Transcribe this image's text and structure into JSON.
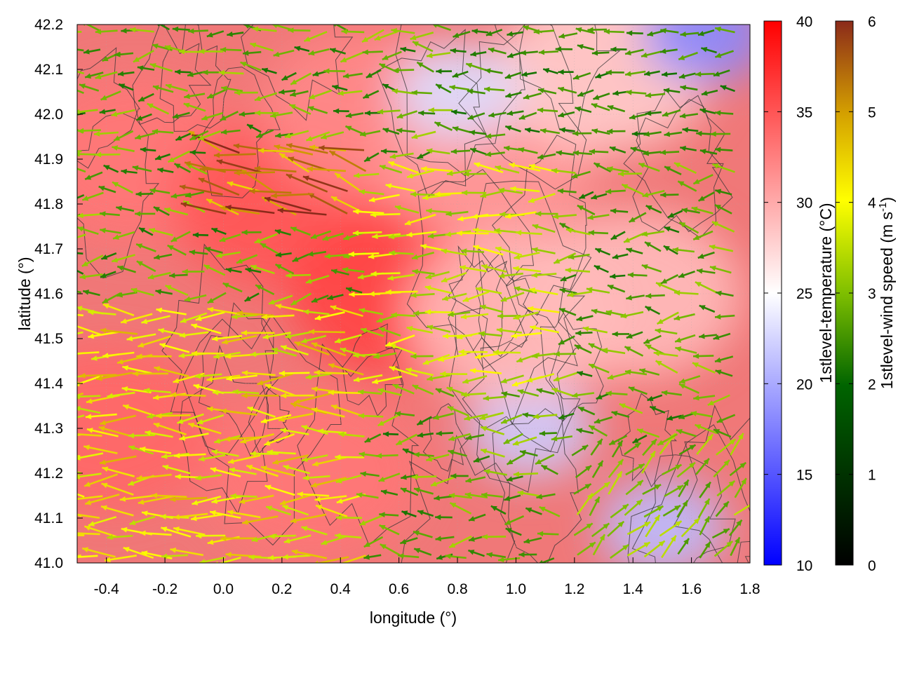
{
  "chart_data": {
    "type": "heatmap",
    "title": "",
    "xlabel": "longitude (°)",
    "ylabel": "latitude (°)",
    "xlim": [
      -0.5,
      1.8
    ],
    "ylim": [
      41.0,
      42.2
    ],
    "x_ticks": [
      "-0.4",
      "-0.2",
      "0.0",
      "0.2",
      "0.4",
      "0.6",
      "0.8",
      "1.0",
      "1.2",
      "1.4",
      "1.6",
      "1.8"
    ],
    "y_ticks": [
      "41.0",
      "41.1",
      "41.2",
      "41.3",
      "41.4",
      "41.5",
      "41.6",
      "41.7",
      "41.8",
      "41.9",
      "42.0",
      "42.1",
      "42.2"
    ],
    "grid": true,
    "overlays": [
      "temperature field (color map)",
      "terrain contour lines (dark gray)",
      "wind vectors colored by speed"
    ],
    "colorbars": [
      {
        "label": "1stlevel-temperature (°C)",
        "range": [
          10,
          40
        ],
        "ticks": [
          "10",
          "15",
          "20",
          "25",
          "30",
          "35",
          "40"
        ],
        "colors": [
          "#0000ff",
          "#ffffff",
          "#ff0000"
        ]
      },
      {
        "label_main": "1stlevel-wind speed (m s",
        "label_sup": "-1",
        "label_end": ")",
        "range": [
          0,
          6
        ],
        "ticks": [
          "0",
          "1",
          "2",
          "3",
          "4",
          "5",
          "6"
        ],
        "colors": [
          "#000000",
          "#006400",
          "#7fbf00",
          "#ffff00",
          "#d4a000",
          "#8b2a1a"
        ]
      }
    ],
    "temperature_field_estimate": {
      "description_units": "°C",
      "points": [
        {
          "lon": -0.4,
          "lat": 41.3,
          "value": 34
        },
        {
          "lon": -0.3,
          "lat": 41.9,
          "value": 33
        },
        {
          "lon": 0.2,
          "lat": 41.8,
          "value": 35
        },
        {
          "lon": 0.6,
          "lat": 41.6,
          "value": 36
        },
        {
          "lon": 0.5,
          "lat": 42.0,
          "value": 32
        },
        {
          "lon": 0.9,
          "lat": 41.9,
          "value": 31
        },
        {
          "lon": 1.3,
          "lat": 42.1,
          "value": 28
        },
        {
          "lon": 1.65,
          "lat": 42.18,
          "value": 18
        },
        {
          "lon": 0.8,
          "lat": 42.05,
          "value": 23
        },
        {
          "lon": 1.05,
          "lat": 41.3,
          "value": 22
        },
        {
          "lon": 1.5,
          "lat": 41.08,
          "value": 21
        },
        {
          "lon": 1.4,
          "lat": 41.6,
          "value": 29
        },
        {
          "lon": 1.0,
          "lat": 41.55,
          "value": 29
        },
        {
          "lon": 0.3,
          "lat": 41.2,
          "value": 33
        }
      ]
    },
    "wind_speed_regions_estimate": {
      "units": "m s-1",
      "regions": [
        {
          "lon_range": [
            -0.5,
            0.5
          ],
          "lat_range": [
            41.0,
            41.6
          ],
          "dominant_direction": "westward",
          "speed": 3.8
        },
        {
          "lon_range": [
            0.5,
            1.2
          ],
          "lat_range": [
            41.4,
            41.9
          ],
          "dominant_direction": "westward",
          "speed": 3.2
        },
        {
          "lon_range": [
            1.2,
            1.8
          ],
          "lat_range": [
            41.0,
            41.25
          ],
          "dominant_direction": "northeastward",
          "speed": 2.5
        },
        {
          "lon_range": [
            0.8,
            1.8
          ],
          "lat_range": [
            41.9,
            42.2
          ],
          "dominant_direction": "westward",
          "speed": 1.8
        },
        {
          "lon_range": [
            0.0,
            0.5
          ],
          "lat_range": [
            41.75,
            41.95
          ],
          "dominant_direction": "west-northwestward",
          "speed": 5.5
        }
      ]
    }
  }
}
